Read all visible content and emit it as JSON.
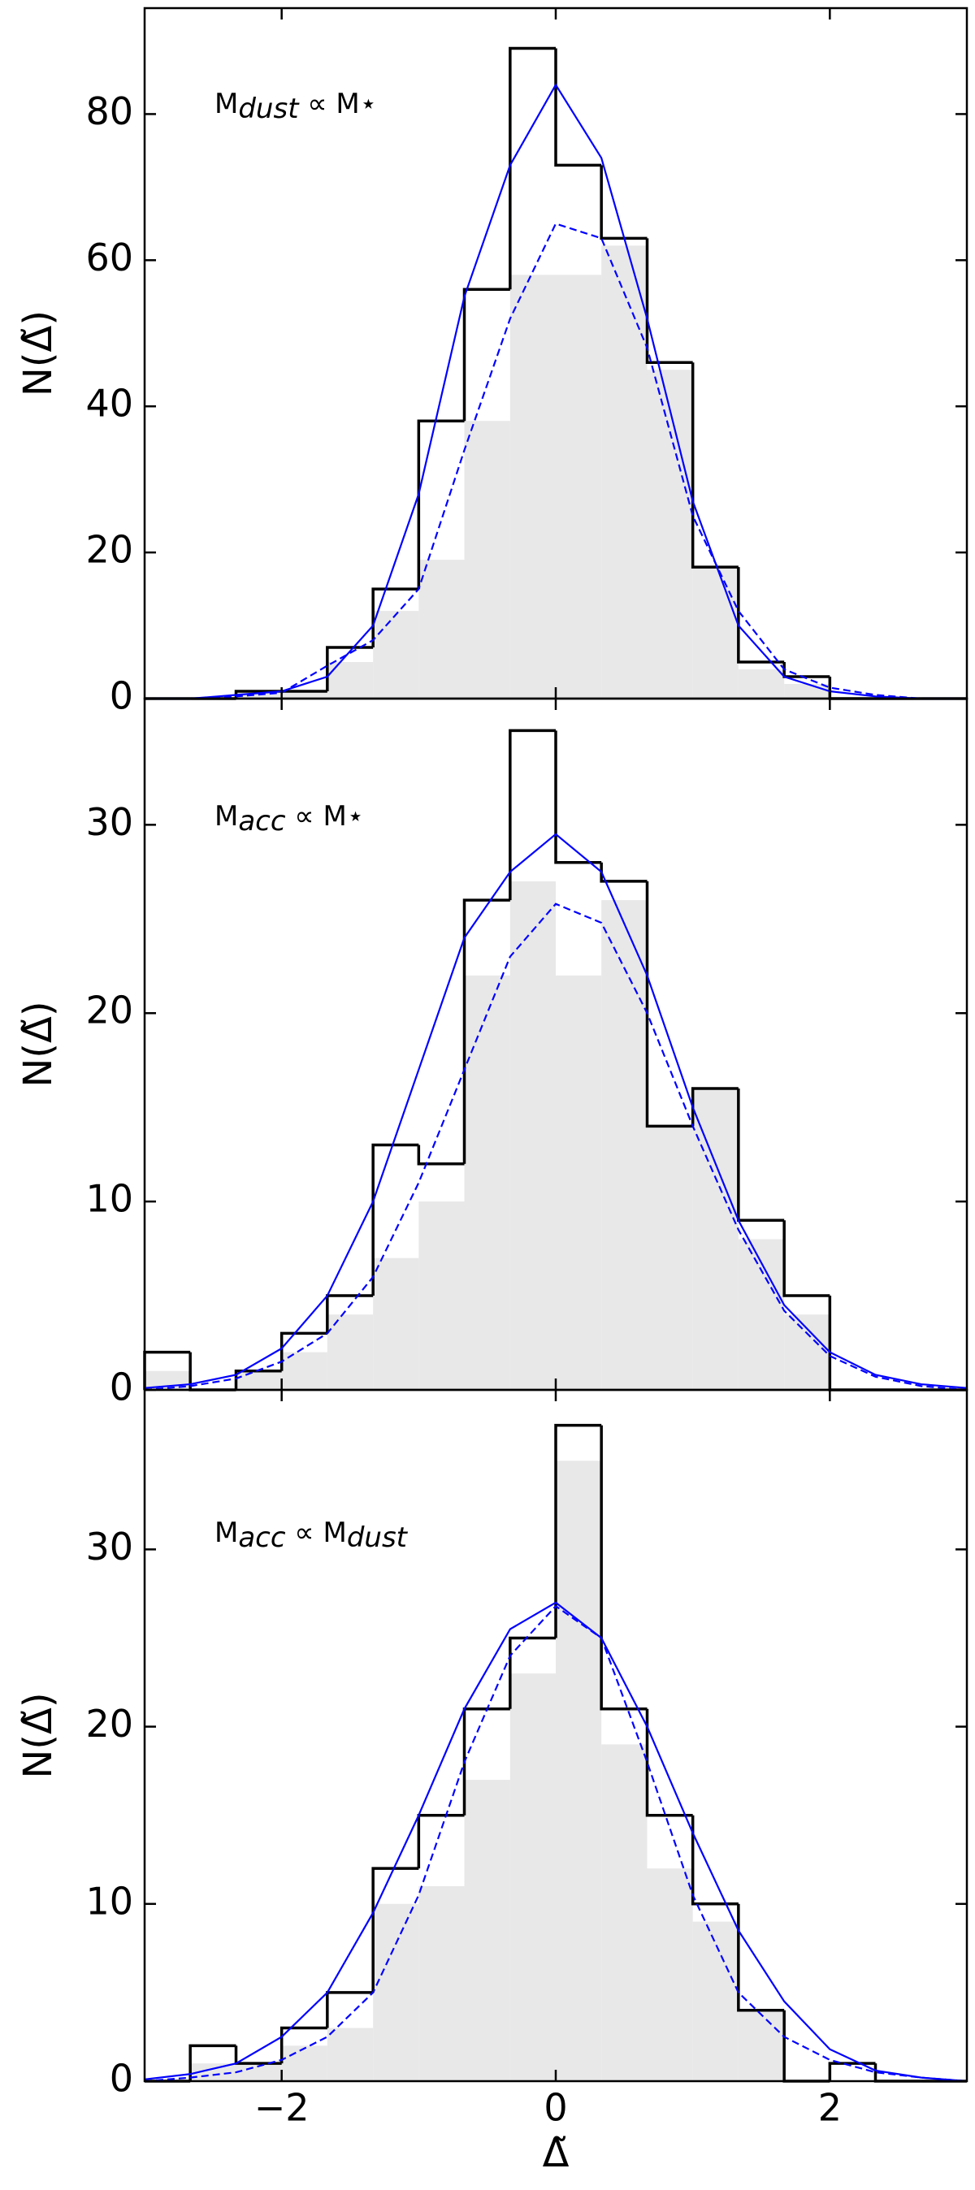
{
  "chart_data": [
    {
      "type": "histogram",
      "ylabel": "N(Δ̃)",
      "annotation": [
        {
          "text": "M"
        },
        {
          "text": "dust",
          "sub": true
        },
        {
          "text": " ∝ M"
        },
        {
          "text": "⋆"
        }
      ],
      "bins": [
        -3,
        -2.667,
        -2.333,
        -2,
        -1.667,
        -1.333,
        -1,
        -0.667,
        -0.333,
        0,
        0.333,
        0.667,
        1,
        1.333,
        1.667,
        2,
        2.333,
        2.667,
        3
      ],
      "series": [
        {
          "style": "filled",
          "color": "#e8e8e8",
          "values": [
            0,
            0,
            1,
            1,
            5,
            12,
            19,
            38,
            58,
            58,
            62,
            45,
            18,
            4,
            2,
            0,
            0,
            0
          ]
        },
        {
          "style": "step",
          "color": "#000000",
          "values": [
            0,
            0,
            1,
            1,
            7,
            15,
            38,
            56,
            89,
            73,
            63,
            46,
            18,
            5,
            3,
            0,
            0,
            0
          ]
        }
      ],
      "line_x": [
        -3,
        -2.667,
        -2.333,
        -2,
        -1.667,
        -1.333,
        -1,
        -0.667,
        -0.333,
        0,
        0.333,
        0.667,
        1,
        1.333,
        1.667,
        2,
        2.333,
        2.667,
        3
      ],
      "lines": [
        {
          "color": "#0000ff",
          "dash": false,
          "values": [
            0,
            0,
            0.5,
            1,
            3,
            10,
            28,
            55,
            73,
            84,
            74,
            52,
            27,
            10,
            3,
            1,
            0.3,
            0,
            0
          ]
        },
        {
          "color": "#0000ff",
          "dash": true,
          "values": [
            0,
            0,
            0.3,
            0.8,
            4.5,
            8,
            15,
            34,
            52,
            65,
            63,
            48,
            25,
            12,
            4,
            1.5,
            0.5,
            0,
            0
          ]
        }
      ],
      "xlim": [
        -3,
        3
      ],
      "ylim": [
        0,
        94.5
      ],
      "yticks": [
        0,
        20,
        40,
        60,
        80
      ]
    },
    {
      "type": "histogram",
      "ylabel": "N(Δ̃)",
      "annotation": [
        {
          "text": "M"
        },
        {
          "text": "acc",
          "sub": true
        },
        {
          "text": " ∝ M"
        },
        {
          "text": "⋆"
        }
      ],
      "bins": [
        -3,
        -2.667,
        -2.333,
        -2,
        -1.667,
        -1.333,
        -1,
        -0.667,
        -0.333,
        0,
        0.333,
        0.667,
        1,
        1.333,
        1.667,
        2,
        2.333,
        2.667,
        3
      ],
      "series": [
        {
          "style": "filled",
          "color": "#e8e8e8",
          "values": [
            1,
            0,
            1,
            2,
            4,
            7,
            10,
            22,
            27,
            22,
            26,
            14,
            16,
            8,
            4,
            0,
            0,
            0
          ]
        },
        {
          "style": "step",
          "color": "#000000",
          "values": [
            2,
            0,
            1,
            3,
            5,
            13,
            12,
            26,
            35,
            28,
            27,
            14,
            16,
            9,
            5,
            0,
            0,
            0
          ]
        }
      ],
      "line_x": [
        -3,
        -2.667,
        -2.333,
        -2,
        -1.667,
        -1.333,
        -1,
        -0.667,
        -0.333,
        0,
        0.333,
        0.667,
        1,
        1.333,
        1.667,
        2,
        2.333,
        2.667,
        3
      ],
      "lines": [
        {
          "color": "#0000ff",
          "dash": false,
          "values": [
            0.1,
            0.3,
            0.8,
            2.2,
            5,
            10,
            17,
            24,
            27.5,
            29.5,
            27.5,
            22,
            15,
            9,
            4.5,
            2,
            0.8,
            0.3,
            0.1
          ]
        },
        {
          "color": "#0000ff",
          "dash": true,
          "values": [
            0,
            0.2,
            0.6,
            1.5,
            3,
            6,
            11,
            17,
            23,
            25.8,
            24.8,
            20,
            14,
            8.5,
            4.2,
            1.8,
            0.7,
            0.2,
            0
          ]
        }
      ],
      "xlim": [
        -3,
        3
      ],
      "ylim": [
        0,
        36.7
      ],
      "yticks": [
        0,
        10,
        20,
        30
      ]
    },
    {
      "type": "histogram",
      "ylabel": "N(Δ̃)",
      "xlabel": "Δ̃",
      "annotation": [
        {
          "text": "M"
        },
        {
          "text": "acc",
          "sub": true
        },
        {
          "text": " ∝ M"
        },
        {
          "text": "dust",
          "sub": true
        }
      ],
      "bins": [
        -3,
        -2.667,
        -2.333,
        -2,
        -1.667,
        -1.333,
        -1,
        -0.667,
        -0.333,
        0,
        0.333,
        0.667,
        1,
        1.333,
        1.667,
        2,
        2.333,
        2.667,
        3
      ],
      "series": [
        {
          "style": "filled",
          "color": "#e8e8e8",
          "values": [
            0,
            1,
            1,
            2,
            3,
            10,
            11,
            17,
            23,
            35,
            19,
            12,
            9,
            4,
            0,
            0,
            0,
            0
          ]
        },
        {
          "style": "step",
          "color": "#000000",
          "values": [
            0,
            2,
            1,
            3,
            5,
            12,
            15,
            21,
            25,
            37,
            21,
            15,
            10,
            4,
            0,
            1,
            0,
            0
          ]
        }
      ],
      "line_x": [
        -3,
        -2.667,
        -2.333,
        -2,
        -1.667,
        -1.333,
        -1,
        -0.667,
        -0.333,
        0,
        0.333,
        0.667,
        1,
        1.333,
        1.667,
        2,
        2.333,
        2.667,
        3
      ],
      "lines": [
        {
          "color": "#0000ff",
          "dash": false,
          "values": [
            0.1,
            0.4,
            1,
            2.5,
            5,
            9.5,
            15,
            21,
            25.5,
            27,
            25,
            20,
            14,
            8.5,
            4.5,
            1.8,
            0.6,
            0.2,
            0
          ]
        },
        {
          "color": "#0000ff",
          "dash": true,
          "values": [
            0,
            0.2,
            0.5,
            1.2,
            2.5,
            5,
            10.5,
            18,
            24,
            26.8,
            25,
            18,
            10.5,
            5,
            2.5,
            1.2,
            0.5,
            0.2,
            0
          ]
        }
      ],
      "xlim": [
        -3,
        3
      ],
      "ylim": [
        0,
        39
      ],
      "yticks": [
        0,
        10,
        20,
        30
      ],
      "xticks": [
        {
          "value": -2,
          "label": "−2"
        },
        0,
        2
      ]
    }
  ]
}
